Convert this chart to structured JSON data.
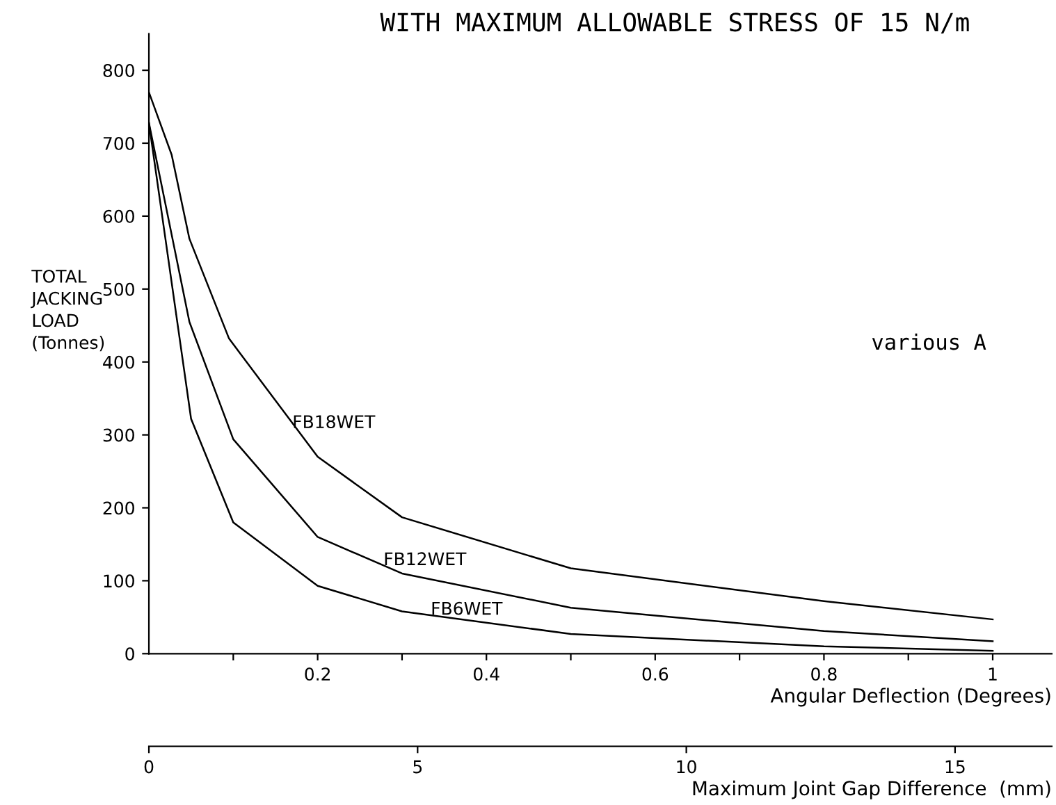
{
  "chart_data": {
    "type": "line",
    "title": "WITH MAXIMUM ALLOWABLE STRESS OF 15 N/m",
    "ylabel": "TOTAL\nJACKING\nLOAD\n(Tonnes)",
    "xlabel": "Angular Deflection (Degrees)",
    "x2label": "Maximum Joint Gap Difference  (mm)",
    "series": [
      {
        "color": "#000000",
        "x": [
          0,
          0.027,
          0.048,
          0.095,
          0.2,
          0.3,
          0.5,
          0.8,
          1.0
        ],
        "values": [
          770,
          684,
          569,
          432,
          270,
          187,
          117,
          72,
          47
        ]
      },
      {
        "color": "#000000",
        "x": [
          0,
          0.048,
          0.1,
          0.2,
          0.3,
          0.5,
          0.8,
          1.0
        ],
        "values": [
          728,
          455,
          294,
          160,
          110,
          63,
          31,
          17
        ]
      },
      {
        "color": "#000000",
        "x": [
          0,
          0.05,
          0.1,
          0.2,
          0.3,
          0.5,
          0.8,
          1.0
        ],
        "values": [
          728,
          322,
          180,
          93,
          58,
          27,
          10,
          4
        ]
      }
    ],
    "annotations": [
      {
        "text": "FB18WET",
        "x": 0.17,
        "y": 316
      },
      {
        "text": "FB12WET",
        "x": 0.278,
        "y": 128
      },
      {
        "text": "FB6WET",
        "x": 0.334,
        "y": 60
      },
      "various A"
    ],
    "xlim": [
      0,
      1.07
    ],
    "xticks": [
      {
        "value": 0.1,
        "label": null
      },
      0.2,
      {
        "value": 0.3,
        "label": null
      },
      0.4,
      {
        "value": 0.5,
        "label": null
      },
      0.6,
      {
        "value": 0.7,
        "label": null
      },
      0.8,
      {
        "value": 0.9,
        "label": null
      },
      {
        "value": 1,
        "label": "1"
      }
    ],
    "x2lim": [
      0,
      16.8
    ],
    "x2ticks": [
      0,
      5,
      10,
      15
    ],
    "ylim": [
      0,
      850
    ],
    "yticks": [
      0,
      100,
      200,
      300,
      400,
      500,
      600,
      700,
      800
    ],
    "grid": false,
    "legend": false,
    "marker": "none",
    "line_style": "solid"
  }
}
